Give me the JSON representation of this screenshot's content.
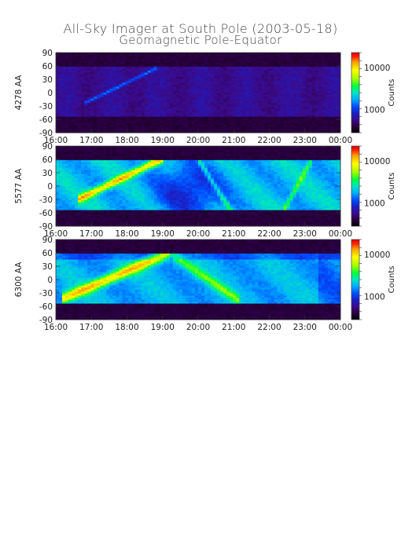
{
  "title": "All-Sky Imager at South Pole (2003-05-18)",
  "subtitle": "Geomagnetic Pole-Equator",
  "colorbar_label": "Counts",
  "chart_data": [
    {
      "type": "heatmap",
      "ylabel": "4278 AA",
      "x_ticks": [
        "16:00",
        "17:00",
        "18:00",
        "19:00",
        "20:00",
        "21:00",
        "22:00",
        "23:00",
        "00:00"
      ],
      "y_ticks": [
        90,
        60,
        30,
        0,
        -30,
        -60,
        -90
      ],
      "ylim": [
        -90,
        90
      ],
      "colorbar_ticks": [
        10000,
        1000
      ],
      "colorbar_scale": "log",
      "colormap": [
        "#000000",
        "#2a0040",
        "#3b0a8a",
        "#1a20c8",
        "#0050ff",
        "#00b0ff",
        "#00e6c0",
        "#00ff40",
        "#a0ff00",
        "#ffff00",
        "#ffa000",
        "#ff2000",
        "#e00000"
      ]
    },
    {
      "type": "heatmap",
      "ylabel": "5577 AA",
      "x_ticks": [
        "16:00",
        "17:00",
        "18:00",
        "19:00",
        "20:00",
        "21:00",
        "22:00",
        "23:00",
        "00:00"
      ],
      "y_ticks": [
        90,
        60,
        30,
        0,
        -30,
        -60,
        -90
      ],
      "ylim": [
        -90,
        90
      ],
      "colorbar_ticks": [
        10000,
        1000
      ],
      "colorbar_scale": "log"
    },
    {
      "type": "heatmap",
      "ylabel": "6300 AA",
      "x_ticks": [
        "16:00",
        "17:00",
        "18:00",
        "19:00",
        "20:00",
        "21:00",
        "22:00",
        "23:00",
        "00:00"
      ],
      "y_ticks": [
        90,
        60,
        30,
        0,
        -30,
        -60,
        -90
      ],
      "ylim": [
        -90,
        90
      ],
      "colorbar_ticks": [
        10000,
        1000
      ],
      "colorbar_scale": "log"
    }
  ]
}
